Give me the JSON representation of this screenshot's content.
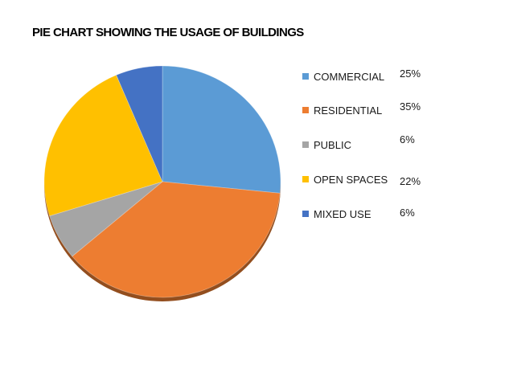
{
  "chart_data": {
    "type": "pie",
    "title": "PIE CHART SHOWING THE USAGE OF BUILDINGS",
    "slices": [
      {
        "label": "COMMERCIAL",
        "value": 25,
        "display": "25%",
        "color": "#5b9bd5"
      },
      {
        "label": "RESIDENTIAL",
        "value": 35,
        "display": "35%",
        "color": "#ed7d31"
      },
      {
        "label": "PUBLIC",
        "value": 6,
        "display": "6%",
        "color": "#a5a5a5"
      },
      {
        "label": "OPEN SPACES",
        "value": 22,
        "display": "22%",
        "color": "#ffc000"
      },
      {
        "label": "MIXED USE",
        "value": 6,
        "display": "6%",
        "color": "#4472c4"
      }
    ],
    "legend_position": "right"
  }
}
